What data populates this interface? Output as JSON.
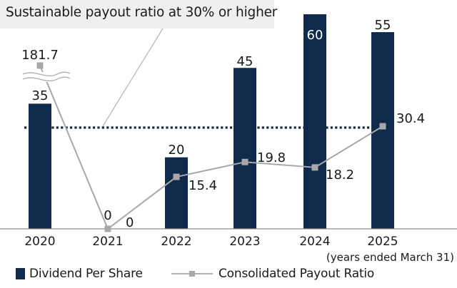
{
  "chart_data": {
    "type": "bar",
    "title": "",
    "xlabel": "",
    "ylabel": "",
    "categories": [
      "2020",
      "2021",
      "2022",
      "2023",
      "2024",
      "2025"
    ],
    "x_axis_note": "(years ended March 31)",
    "series": [
      {
        "name": "Dividend Per Share",
        "type": "bar",
        "color": "#0f2a4a",
        "values": [
          35,
          0,
          20,
          45,
          60,
          55
        ],
        "labels": [
          "35",
          "0",
          "20",
          "45",
          "60",
          "55"
        ]
      },
      {
        "name": "Consolidated Payout Ratio",
        "type": "line",
        "color": "#a8a8a8",
        "values": [
          181.7,
          0,
          15.4,
          19.8,
          18.2,
          30.4
        ],
        "labels": [
          "181.7",
          "0",
          "15.4",
          "19.8",
          "18.2",
          "30.4"
        ]
      }
    ],
    "reference_line": {
      "value": 30,
      "style": "dotted",
      "color": "#0f2a4a"
    },
    "axis_break": {
      "category": "2020",
      "series": "Consolidated Payout Ratio"
    },
    "annotation": "Sustainable payout ratio at 30% or higher",
    "legend_position": "bottom",
    "grid": false
  }
}
